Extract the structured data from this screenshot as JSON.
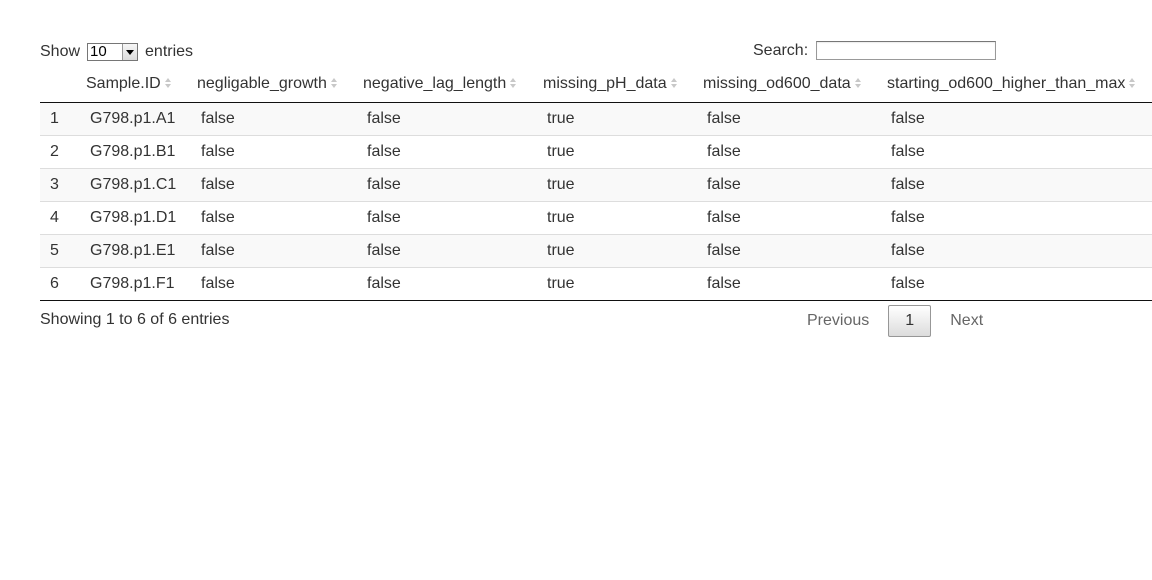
{
  "length_control": {
    "show_label": "Show",
    "selected": "10",
    "entries_label": "entries"
  },
  "search": {
    "label": "Search:",
    "value": ""
  },
  "table": {
    "columns": [
      "",
      "Sample.ID",
      "negligable_growth",
      "negative_lag_length",
      "missing_pH_data",
      "missing_od600_data",
      "starting_od600_higher_than_max"
    ],
    "rows": [
      [
        "1",
        "G798.p1.A1",
        "false",
        "false",
        "true",
        "false",
        "false"
      ],
      [
        "2",
        "G798.p1.B1",
        "false",
        "false",
        "true",
        "false",
        "false"
      ],
      [
        "3",
        "G798.p1.C1",
        "false",
        "false",
        "true",
        "false",
        "false"
      ],
      [
        "4",
        "G798.p1.D1",
        "false",
        "false",
        "true",
        "false",
        "false"
      ],
      [
        "5",
        "G798.p1.E1",
        "false",
        "false",
        "true",
        "false",
        "false"
      ],
      [
        "6",
        "G798.p1.F1",
        "false",
        "false",
        "true",
        "false",
        "false"
      ]
    ]
  },
  "info": "Showing 1 to 6 of 6 entries",
  "pagination": {
    "previous": "Previous",
    "current": "1",
    "next": "Next"
  }
}
